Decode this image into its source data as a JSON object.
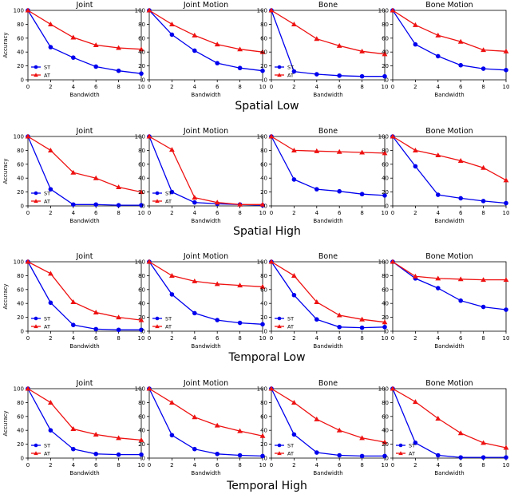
{
  "figure": {
    "groups": [
      {
        "title": "Spatial Low"
      },
      {
        "title": "Spatial High"
      },
      {
        "title": "Temporal Low"
      },
      {
        "title": "Temporal High"
      }
    ]
  },
  "colors": {
    "st": "#0000ee",
    "at": "#ee1111",
    "axis": "#000000"
  },
  "chart_data": [
    {
      "type": "line",
      "group": "Spatial Low",
      "title": "Joint",
      "xlabel": "Bandwidth",
      "ylabel": "Accuracy",
      "x": [
        0,
        2,
        4,
        6,
        8,
        10
      ],
      "xlim": [
        0,
        10
      ],
      "ylim": [
        0,
        100
      ],
      "grid": false,
      "legend": "lower-left",
      "series": [
        {
          "name": "ST",
          "marker": "circle",
          "values": [
            100,
            47,
            32,
            19,
            13,
            9
          ]
        },
        {
          "name": "AT",
          "marker": "triangle",
          "values": [
            100,
            80,
            61,
            50,
            46,
            44
          ]
        }
      ]
    },
    {
      "type": "line",
      "group": "Spatial Low",
      "title": "Joint Motion",
      "xlabel": "Bandwidth",
      "ylabel": "",
      "x": [
        0,
        2,
        4,
        6,
        8,
        10
      ],
      "xlim": [
        0,
        10
      ],
      "ylim": [
        0,
        100
      ],
      "grid": false,
      "legend": "",
      "series": [
        {
          "name": "ST",
          "marker": "circle",
          "values": [
            100,
            65,
            42,
            24,
            17,
            13
          ]
        },
        {
          "name": "AT",
          "marker": "triangle",
          "values": [
            100,
            80,
            64,
            51,
            44,
            40
          ]
        }
      ]
    },
    {
      "type": "line",
      "group": "Spatial Low",
      "title": "Bone",
      "xlabel": "Bandwidth",
      "ylabel": "",
      "x": [
        0,
        2,
        4,
        6,
        8,
        10
      ],
      "xlim": [
        0,
        10
      ],
      "ylim": [
        0,
        100
      ],
      "grid": false,
      "legend": "lower-left",
      "series": [
        {
          "name": "ST",
          "marker": "circle",
          "values": [
            100,
            12,
            8,
            6,
            5,
            5
          ]
        },
        {
          "name": "AT",
          "marker": "triangle",
          "values": [
            100,
            80,
            59,
            49,
            41,
            37
          ]
        }
      ]
    },
    {
      "type": "line",
      "group": "Spatial Low",
      "title": "Bone Motion",
      "xlabel": "Bandwidth",
      "ylabel": "",
      "x": [
        0,
        2,
        4,
        6,
        8,
        10
      ],
      "xlim": [
        0,
        10
      ],
      "ylim": [
        0,
        100
      ],
      "grid": false,
      "legend": "",
      "series": [
        {
          "name": "ST",
          "marker": "circle",
          "values": [
            100,
            51,
            34,
            21,
            16,
            14
          ]
        },
        {
          "name": "AT",
          "marker": "triangle",
          "values": [
            100,
            79,
            64,
            55,
            43,
            41
          ]
        }
      ]
    },
    {
      "type": "line",
      "group": "Spatial High",
      "title": "Joint",
      "xlabel": "Bandwidth",
      "ylabel": "Accuracy",
      "x": [
        0,
        2,
        4,
        6,
        8,
        10
      ],
      "xlim": [
        0,
        10
      ],
      "ylim": [
        0,
        100
      ],
      "grid": false,
      "legend": "lower-left",
      "series": [
        {
          "name": "ST",
          "marker": "circle",
          "values": [
            100,
            24,
            2,
            2,
            1,
            1
          ]
        },
        {
          "name": "AT",
          "marker": "triangle",
          "values": [
            100,
            80,
            48,
            40,
            27,
            20
          ]
        }
      ]
    },
    {
      "type": "line",
      "group": "Spatial High",
      "title": "Joint Motion",
      "xlabel": "Bandwidth",
      "ylabel": "",
      "x": [
        0,
        2,
        4,
        6,
        8,
        10
      ],
      "xlim": [
        0,
        10
      ],
      "ylim": [
        0,
        100
      ],
      "grid": false,
      "legend": "lower-left",
      "series": [
        {
          "name": "ST",
          "marker": "circle",
          "values": [
            100,
            20,
            5,
            3,
            2,
            1
          ]
        },
        {
          "name": "AT",
          "marker": "triangle",
          "values": [
            100,
            81,
            12,
            5,
            2,
            2
          ]
        }
      ]
    },
    {
      "type": "line",
      "group": "Spatial High",
      "title": "Bone",
      "xlabel": "Bandwidth",
      "ylabel": "",
      "x": [
        0,
        2,
        4,
        6,
        8,
        10
      ],
      "xlim": [
        0,
        10
      ],
      "ylim": [
        0,
        100
      ],
      "grid": false,
      "legend": "",
      "series": [
        {
          "name": "ST",
          "marker": "circle",
          "values": [
            100,
            38,
            24,
            21,
            17,
            15
          ]
        },
        {
          "name": "AT",
          "marker": "triangle",
          "values": [
            100,
            80,
            79,
            78,
            77,
            76
          ]
        }
      ]
    },
    {
      "type": "line",
      "group": "Spatial High",
      "title": "Bone Motion",
      "xlabel": "Bandwidth",
      "ylabel": "",
      "x": [
        0,
        2,
        4,
        6,
        8,
        10
      ],
      "xlim": [
        0,
        10
      ],
      "ylim": [
        0,
        100
      ],
      "grid": false,
      "legend": "",
      "series": [
        {
          "name": "ST",
          "marker": "circle",
          "values": [
            100,
            57,
            16,
            11,
            7,
            4
          ]
        },
        {
          "name": "AT",
          "marker": "triangle",
          "values": [
            100,
            80,
            73,
            65,
            55,
            37
          ]
        }
      ]
    },
    {
      "type": "line",
      "group": "Temporal Low",
      "title": "Joint",
      "xlabel": "Bandwidth",
      "ylabel": "Accuracy",
      "x": [
        0,
        2,
        4,
        6,
        8,
        10
      ],
      "xlim": [
        0,
        10
      ],
      "ylim": [
        0,
        100
      ],
      "grid": false,
      "legend": "lower-left",
      "series": [
        {
          "name": "ST",
          "marker": "circle",
          "values": [
            100,
            41,
            9,
            3,
            2,
            2
          ]
        },
        {
          "name": "AT",
          "marker": "triangle",
          "values": [
            100,
            83,
            42,
            27,
            20,
            16
          ]
        }
      ]
    },
    {
      "type": "line",
      "group": "Temporal Low",
      "title": "Joint Motion",
      "xlabel": "Bandwidth",
      "ylabel": "",
      "x": [
        0,
        2,
        4,
        6,
        8,
        10
      ],
      "xlim": [
        0,
        10
      ],
      "ylim": [
        0,
        100
      ],
      "grid": false,
      "legend": "lower-left",
      "series": [
        {
          "name": "ST",
          "marker": "circle",
          "values": [
            100,
            53,
            26,
            16,
            12,
            10
          ]
        },
        {
          "name": "AT",
          "marker": "triangle",
          "values": [
            100,
            80,
            72,
            68,
            66,
            64
          ]
        }
      ]
    },
    {
      "type": "line",
      "group": "Temporal Low",
      "title": "Bone",
      "xlabel": "Bandwidth",
      "ylabel": "",
      "x": [
        0,
        2,
        4,
        6,
        8,
        10
      ],
      "xlim": [
        0,
        10
      ],
      "ylim": [
        0,
        100
      ],
      "grid": false,
      "legend": "lower-left",
      "series": [
        {
          "name": "ST",
          "marker": "circle",
          "values": [
            100,
            52,
            17,
            6,
            5,
            6
          ]
        },
        {
          "name": "AT",
          "marker": "triangle",
          "values": [
            100,
            80,
            42,
            23,
            17,
            13
          ]
        }
      ]
    },
    {
      "type": "line",
      "group": "Temporal Low",
      "title": "Bone Motion",
      "xlabel": "Bandwidth",
      "ylabel": "",
      "x": [
        0,
        2,
        4,
        6,
        8,
        10
      ],
      "xlim": [
        0,
        10
      ],
      "ylim": [
        0,
        100
      ],
      "grid": false,
      "legend": "",
      "series": [
        {
          "name": "ST",
          "marker": "circle",
          "values": [
            100,
            76,
            62,
            44,
            35,
            31
          ]
        },
        {
          "name": "AT",
          "marker": "triangle",
          "values": [
            100,
            79,
            76,
            75,
            74,
            74
          ]
        }
      ]
    },
    {
      "type": "line",
      "group": "Temporal High",
      "title": "Joint",
      "xlabel": "Bandwidth",
      "ylabel": "Accuracy",
      "x": [
        0,
        2,
        4,
        6,
        8,
        10
      ],
      "xlim": [
        0,
        10
      ],
      "ylim": [
        0,
        100
      ],
      "grid": false,
      "legend": "lower-left",
      "series": [
        {
          "name": "ST",
          "marker": "circle",
          "values": [
            100,
            40,
            13,
            6,
            5,
            5
          ]
        },
        {
          "name": "AT",
          "marker": "triangle",
          "values": [
            100,
            80,
            42,
            34,
            29,
            26
          ]
        }
      ]
    },
    {
      "type": "line",
      "group": "Temporal High",
      "title": "Joint Motion",
      "xlabel": "Bandwidth",
      "ylabel": "",
      "x": [
        0,
        2,
        4,
        6,
        8,
        10
      ],
      "xlim": [
        0,
        10
      ],
      "ylim": [
        0,
        100
      ],
      "grid": false,
      "legend": "",
      "series": [
        {
          "name": "ST",
          "marker": "circle",
          "values": [
            100,
            33,
            13,
            6,
            4,
            3
          ]
        },
        {
          "name": "AT",
          "marker": "triangle",
          "values": [
            100,
            80,
            59,
            47,
            39,
            32
          ]
        }
      ]
    },
    {
      "type": "line",
      "group": "Temporal High",
      "title": "Bone",
      "xlabel": "Bandwidth",
      "ylabel": "",
      "x": [
        0,
        2,
        4,
        6,
        8,
        10
      ],
      "xlim": [
        0,
        10
      ],
      "ylim": [
        0,
        100
      ],
      "grid": false,
      "legend": "lower-left",
      "series": [
        {
          "name": "ST",
          "marker": "circle",
          "values": [
            100,
            34,
            8,
            4,
            3,
            3
          ]
        },
        {
          "name": "AT",
          "marker": "triangle",
          "values": [
            100,
            80,
            56,
            40,
            29,
            23
          ]
        }
      ]
    },
    {
      "type": "line",
      "group": "Temporal High",
      "title": "Bone Motion",
      "xlabel": "Bandwidth",
      "ylabel": "",
      "x": [
        0,
        2,
        4,
        6,
        8,
        10
      ],
      "xlim": [
        0,
        10
      ],
      "ylim": [
        0,
        100
      ],
      "grid": false,
      "legend": "lower-left",
      "series": [
        {
          "name": "ST",
          "marker": "circle",
          "values": [
            100,
            22,
            4,
            1,
            1,
            1
          ]
        },
        {
          "name": "AT",
          "marker": "triangle",
          "values": [
            100,
            81,
            57,
            36,
            22,
            15
          ]
        }
      ]
    }
  ]
}
